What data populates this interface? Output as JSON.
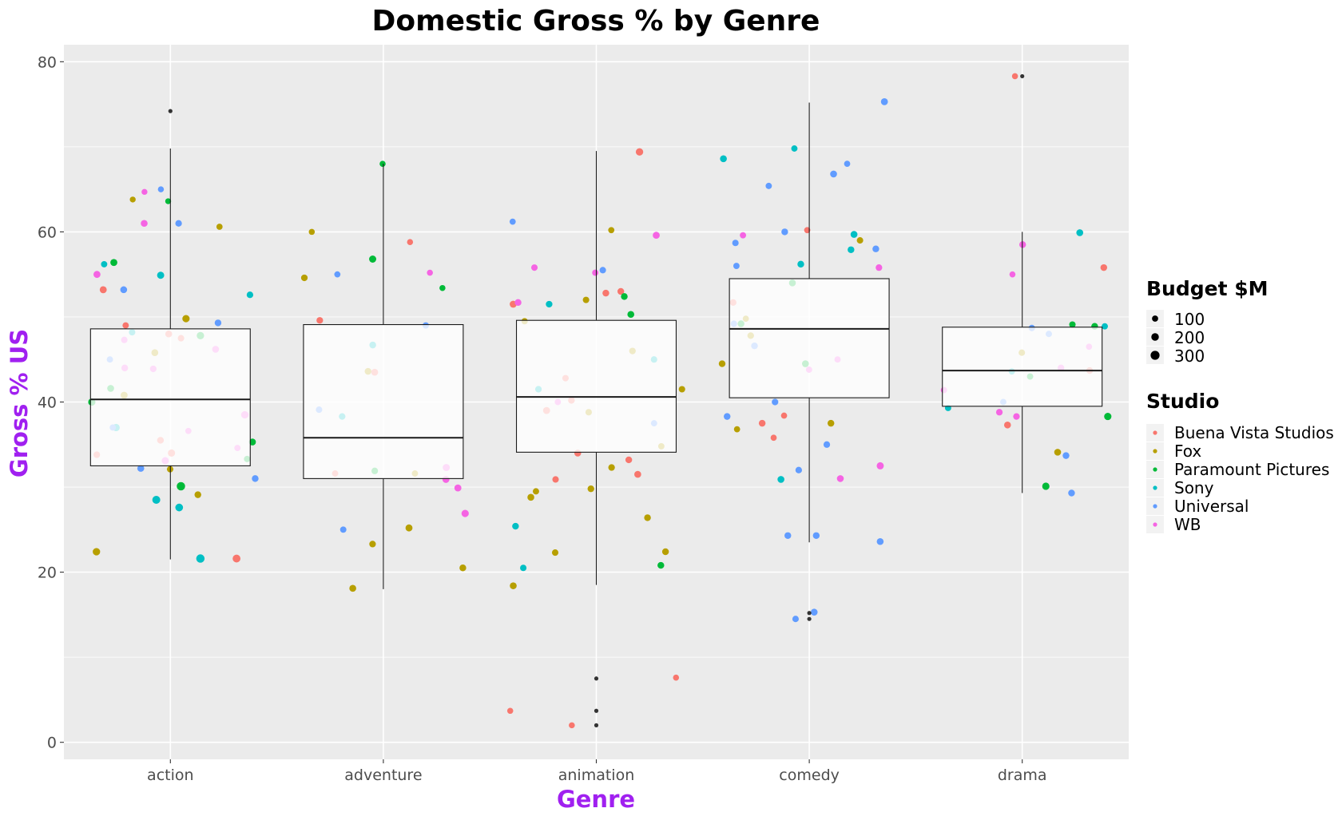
{
  "chart_data": {
    "type": "box",
    "title": "Domestic Gross % by Genre",
    "xlabel": "Genre",
    "ylabel": "Gross % US",
    "categories": [
      "action",
      "adventure",
      "animation",
      "comedy",
      "drama"
    ],
    "ylim": [
      -2,
      82
    ],
    "yticks": [
      0,
      20,
      40,
      60,
      80
    ],
    "grid": true,
    "legend_position": "right",
    "boxes": [
      {
        "category": "action",
        "lower_whisker": 21.5,
        "q1": 32.5,
        "median": 40.3,
        "q3": 48.6,
        "upper_whisker": 69.8,
        "outliers": [
          74.2
        ]
      },
      {
        "category": "adventure",
        "lower_whisker": 18.0,
        "q1": 31.0,
        "median": 35.8,
        "q3": 49.1,
        "upper_whisker": 68.0,
        "outliers": []
      },
      {
        "category": "animation",
        "lower_whisker": 18.5,
        "q1": 34.1,
        "median": 40.6,
        "q3": 49.6,
        "upper_whisker": 69.5,
        "outliers": [
          7.5,
          3.7,
          2.0
        ]
      },
      {
        "category": "comedy",
        "lower_whisker": 23.5,
        "q1": 40.5,
        "median": 48.6,
        "q3": 54.5,
        "upper_whisker": 75.2,
        "outliers": [
          15.2,
          14.5
        ]
      },
      {
        "category": "drama",
        "lower_whisker": 29.3,
        "q1": 39.5,
        "median": 43.7,
        "q3": 48.8,
        "upper_whisker": 60.0,
        "outliers": [
          78.3
        ]
      }
    ],
    "size_legend": {
      "title": "Budget $M",
      "values": [
        100,
        200,
        300
      ]
    },
    "color_legend": {
      "title": "Studio",
      "entries": [
        {
          "name": "Buena Vista Studios",
          "color": "#F8766D"
        },
        {
          "name": "Fox",
          "color": "#B79F00"
        },
        {
          "name": "Paramount Pictures",
          "color": "#00BA38"
        },
        {
          "name": "Sony",
          "color": "#00BFC4"
        },
        {
          "name": "Universal",
          "color": "#619CFF"
        },
        {
          "name": "WB",
          "color": "#F564E3"
        }
      ]
    },
    "points": {
      "action": [
        [
          0,
          48.0,
          150
        ],
        [
          0,
          47.5,
          120
        ],
        [
          0,
          53.2,
          160
        ],
        [
          0,
          49.0,
          110
        ],
        [
          0,
          35.5,
          140
        ],
        [
          0,
          34.0,
          180
        ],
        [
          0,
          33.8,
          130
        ],
        [
          0,
          21.6,
          220
        ],
        [
          1,
          49.8,
          180
        ],
        [
          1,
          45.8,
          150
        ],
        [
          1,
          63.8,
          80
        ],
        [
          1,
          60.6,
          100
        ],
        [
          1,
          29.1,
          140
        ],
        [
          1,
          22.4,
          190
        ],
        [
          1,
          32.1,
          120
        ],
        [
          1,
          40.8,
          160
        ],
        [
          2,
          47.8,
          190
        ],
        [
          2,
          41.6,
          150
        ],
        [
          2,
          30.1,
          260
        ],
        [
          2,
          63.6,
          80
        ],
        [
          2,
          56.4,
          160
        ],
        [
          2,
          40.0,
          180
        ],
        [
          2,
          33.3,
          110
        ],
        [
          2,
          35.3,
          150
        ],
        [
          3,
          56.2,
          110
        ],
        [
          3,
          54.9,
          170
        ],
        [
          3,
          52.6,
          130
        ],
        [
          3,
          37.0,
          180
        ],
        [
          3,
          28.5,
          230
        ],
        [
          3,
          27.6,
          210
        ],
        [
          3,
          21.6,
          260
        ],
        [
          3,
          48.2,
          120
        ],
        [
          4,
          37.0,
          110
        ],
        [
          4,
          31.0,
          140
        ],
        [
          4,
          65.0,
          90
        ],
        [
          4,
          53.2,
          150
        ],
        [
          4,
          61.0,
          130
        ],
        [
          4,
          32.2,
          150
        ],
        [
          4,
          45.0,
          110
        ],
        [
          4,
          49.3,
          140
        ],
        [
          5,
          64.7,
          80
        ],
        [
          5,
          61.0,
          150
        ],
        [
          5,
          55.0,
          160
        ],
        [
          5,
          38.5,
          190
        ],
        [
          5,
          44.0,
          140
        ],
        [
          5,
          34.6,
          110
        ],
        [
          5,
          33.1,
          170
        ],
        [
          5,
          47.3,
          120
        ],
        [
          5,
          36.6,
          100
        ],
        [
          5,
          43.9,
          130
        ],
        [
          5,
          46.2,
          150
        ]
      ],
      "adventure": [
        [
          0,
          58.8,
          90
        ],
        [
          0,
          49.6,
          130
        ],
        [
          0,
          31.6,
          110
        ],
        [
          0,
          43.5,
          150
        ],
        [
          1,
          60.0,
          90
        ],
        [
          1,
          54.6,
          130
        ],
        [
          1,
          43.6,
          140
        ],
        [
          1,
          31.6,
          110
        ],
        [
          1,
          25.2,
          160
        ],
        [
          1,
          20.5,
          140
        ],
        [
          1,
          18.1,
          150
        ],
        [
          1,
          23.3,
          130
        ],
        [
          2,
          68.0,
          90
        ],
        [
          2,
          56.8,
          170
        ],
        [
          2,
          53.4,
          90
        ],
        [
          2,
          31.9,
          130
        ],
        [
          3,
          46.7,
          140
        ],
        [
          3,
          38.3,
          130
        ],
        [
          4,
          55.0,
          100
        ],
        [
          4,
          49.0,
          120
        ],
        [
          4,
          39.1,
          120
        ],
        [
          4,
          25.0,
          110
        ],
        [
          5,
          55.2,
          90
        ],
        [
          5,
          30.9,
          160
        ],
        [
          5,
          26.9,
          180
        ],
        [
          5,
          29.9,
          160
        ],
        [
          5,
          32.3,
          170
        ]
      ],
      "animation": [
        [
          0,
          69.4,
          190
        ],
        [
          0,
          53.0,
          140
        ],
        [
          0,
          52.8,
          140
        ],
        [
          0,
          51.5,
          160
        ],
        [
          0,
          42.8,
          120
        ],
        [
          0,
          40.2,
          140
        ],
        [
          0,
          39.0,
          160
        ],
        [
          0,
          34.0,
          150
        ],
        [
          0,
          33.2,
          140
        ],
        [
          0,
          31.5,
          150
        ],
        [
          0,
          30.9,
          120
        ],
        [
          0,
          7.6,
          90
        ],
        [
          0,
          3.7,
          90
        ],
        [
          0,
          2.0,
          90
        ],
        [
          1,
          60.2,
          100
        ],
        [
          1,
          52.0,
          120
        ],
        [
          1,
          49.5,
          110
        ],
        [
          1,
          41.5,
          120
        ],
        [
          1,
          38.8,
          120
        ],
        [
          1,
          34.8,
          110
        ],
        [
          1,
          32.3,
          130
        ],
        [
          1,
          29.8,
          140
        ],
        [
          1,
          28.8,
          150
        ],
        [
          1,
          26.4,
          140
        ],
        [
          1,
          22.4,
          140
        ],
        [
          1,
          22.3,
          120
        ],
        [
          1,
          18.4,
          150
        ],
        [
          1,
          29.5,
          110
        ],
        [
          1,
          46.0,
          130
        ],
        [
          2,
          50.3,
          150
        ],
        [
          2,
          52.4,
          140
        ],
        [
          2,
          20.8,
          140
        ],
        [
          3,
          51.5,
          130
        ],
        [
          3,
          45.0,
          120
        ],
        [
          3,
          41.5,
          130
        ],
        [
          3,
          25.4,
          140
        ],
        [
          3,
          20.5,
          120
        ],
        [
          4,
          61.2,
          100
        ],
        [
          4,
          55.5,
          120
        ],
        [
          4,
          37.5,
          110
        ],
        [
          5,
          59.6,
          160
        ],
        [
          5,
          55.8,
          120
        ],
        [
          5,
          55.2,
          110
        ],
        [
          5,
          51.7,
          140
        ],
        [
          5,
          40.0,
          110
        ]
      ],
      "comedy": [
        [
          0,
          60.2,
          100
        ],
        [
          0,
          51.7,
          130
        ],
        [
          0,
          38.4,
          100
        ],
        [
          0,
          37.5,
          140
        ],
        [
          0,
          35.8,
          100
        ],
        [
          1,
          59.0,
          120
        ],
        [
          1,
          49.8,
          100
        ],
        [
          1,
          47.8,
          130
        ],
        [
          1,
          44.5,
          140
        ],
        [
          1,
          37.5,
          140
        ],
        [
          1,
          36.8,
          100
        ],
        [
          2,
          54.0,
          150
        ],
        [
          2,
          49.2,
          140
        ],
        [
          2,
          44.5,
          150
        ],
        [
          3,
          69.8,
          110
        ],
        [
          3,
          68.6,
          150
        ],
        [
          3,
          59.7,
          150
        ],
        [
          3,
          56.2,
          140
        ],
        [
          3,
          57.9,
          140
        ],
        [
          3,
          30.9,
          150
        ],
        [
          4,
          75.3,
          160
        ],
        [
          4,
          68.0,
          100
        ],
        [
          4,
          66.8,
          150
        ],
        [
          4,
          65.4,
          110
        ],
        [
          4,
          60.0,
          140
        ],
        [
          4,
          58.7,
          120
        ],
        [
          4,
          58.0,
          140
        ],
        [
          4,
          56.0,
          110
        ],
        [
          4,
          49.2,
          120
        ],
        [
          4,
          46.6,
          140
        ],
        [
          4,
          40.0,
          130
        ],
        [
          4,
          38.3,
          140
        ],
        [
          4,
          35.0,
          130
        ],
        [
          4,
          32.0,
          130
        ],
        [
          4,
          24.3,
          140
        ],
        [
          4,
          24.3,
          140
        ],
        [
          4,
          23.6,
          150
        ],
        [
          4,
          15.3,
          150
        ],
        [
          4,
          14.5,
          120
        ],
        [
          5,
          59.6,
          110
        ],
        [
          5,
          55.8,
          130
        ],
        [
          5,
          45.0,
          110
        ],
        [
          5,
          43.8,
          110
        ],
        [
          5,
          32.5,
          170
        ],
        [
          5,
          31.0,
          150
        ]
      ],
      "drama": [
        [
          0,
          78.3,
          90
        ],
        [
          0,
          55.8,
          140
        ],
        [
          0,
          43.7,
          140
        ],
        [
          0,
          37.3,
          150
        ],
        [
          1,
          45.8,
          120
        ],
        [
          1,
          34.1,
          150
        ],
        [
          2,
          49.1,
          120
        ],
        [
          2,
          48.9,
          140
        ],
        [
          2,
          43.0,
          110
        ],
        [
          2,
          38.3,
          180
        ],
        [
          2,
          30.1,
          180
        ],
        [
          3,
          59.9,
          150
        ],
        [
          3,
          43.6,
          110
        ],
        [
          3,
          39.3,
          110
        ],
        [
          3,
          48.9,
          110
        ],
        [
          4,
          48.7,
          120
        ],
        [
          4,
          48.0,
          110
        ],
        [
          4,
          40.0,
          110
        ],
        [
          4,
          33.7,
          140
        ],
        [
          4,
          29.3,
          140
        ],
        [
          5,
          58.5,
          140
        ],
        [
          5,
          55.0,
          90
        ],
        [
          5,
          46.5,
          100
        ],
        [
          5,
          44.0,
          140
        ],
        [
          5,
          41.4,
          110
        ],
        [
          5,
          38.8,
          130
        ],
        [
          5,
          38.3,
          130
        ]
      ]
    }
  }
}
